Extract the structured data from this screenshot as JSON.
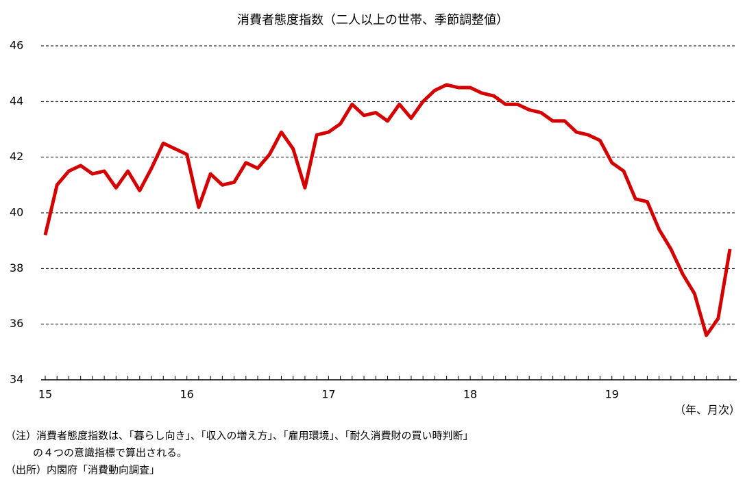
{
  "chart_data": {
    "type": "line",
    "title": "消費者態度指数（二人以上の世帯、季節調整値）",
    "x_unit": "（年、月次）",
    "categories": [
      "15",
      null,
      null,
      null,
      null,
      null,
      null,
      null,
      null,
      null,
      null,
      null,
      "16",
      null,
      null,
      null,
      null,
      null,
      null,
      null,
      null,
      null,
      null,
      null,
      "17",
      null,
      null,
      null,
      null,
      null,
      null,
      null,
      null,
      null,
      null,
      null,
      "18",
      null,
      null,
      null,
      null,
      null,
      null,
      null,
      null,
      null,
      null,
      null,
      "19",
      null,
      null,
      null,
      null,
      null,
      null,
      null,
      null,
      null,
      null
    ],
    "series": [
      {
        "color": "#d40000",
        "values": [
          39.2,
          41.0,
          41.5,
          41.7,
          41.4,
          41.5,
          40.9,
          41.5,
          40.8,
          41.6,
          42.5,
          42.3,
          42.1,
          40.2,
          41.4,
          41.0,
          41.1,
          41.8,
          41.6,
          42.1,
          42.9,
          42.3,
          40.9,
          42.8,
          42.9,
          43.2,
          43.9,
          43.5,
          43.6,
          43.3,
          43.9,
          43.4,
          44.0,
          44.4,
          44.6,
          44.5,
          44.5,
          44.3,
          44.2,
          43.9,
          43.9,
          43.7,
          43.6,
          43.3,
          43.3,
          42.9,
          42.8,
          42.6,
          41.8,
          41.5,
          40.5,
          40.4,
          39.4,
          38.7,
          37.8,
          37.1,
          35.6,
          36.2,
          38.7
        ]
      }
    ],
    "ylim": [
      34,
      46
    ],
    "yticks": [
      34,
      36,
      38,
      40,
      42,
      44,
      46
    ],
    "grid": true,
    "notes": [
      "（注）消費者態度指数は、「暮らし向き」、「収入の増え方」、「雇用環境」、「耐久消費財の買い時判断」",
      "の４つの意識指標で算出される。",
      "（出所）内閣府「消費動向調査」"
    ]
  }
}
